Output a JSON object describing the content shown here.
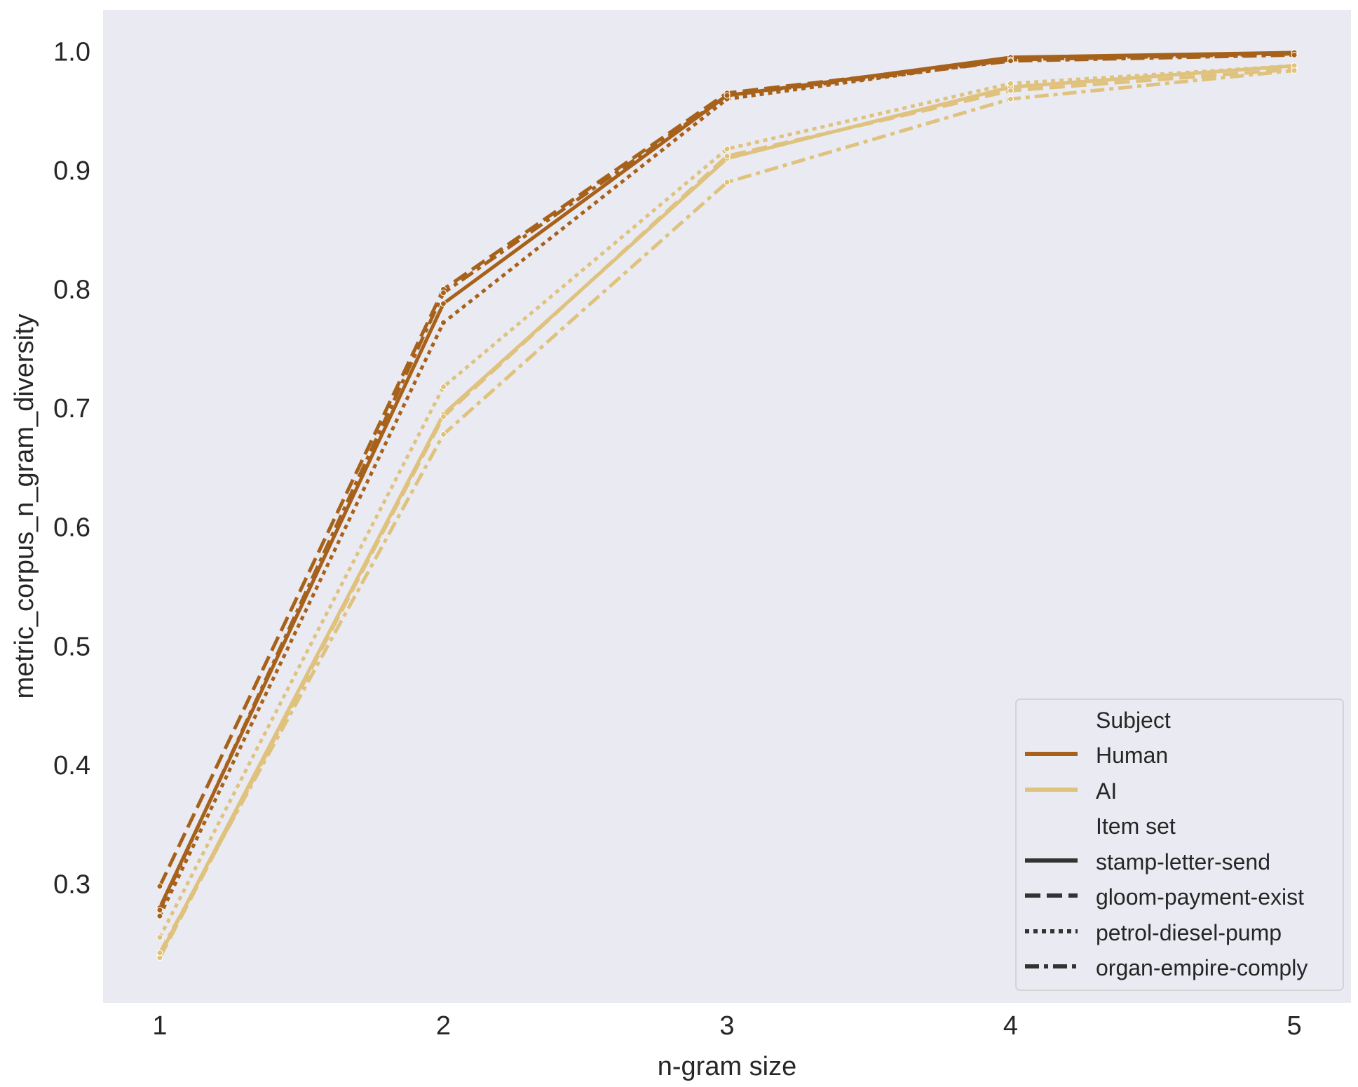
{
  "chart_data": {
    "type": "line",
    "xlabel": "n-gram size",
    "ylabel": "metric_corpus_n_gram_diversity",
    "x": [
      1,
      2,
      3,
      4,
      5
    ],
    "x_ticks": [
      "1",
      "2",
      "3",
      "4",
      "5"
    ],
    "y_ticks": [
      "0.3",
      "0.4",
      "0.5",
      "0.6",
      "0.7",
      "0.8",
      "0.9",
      "1.0"
    ],
    "xlim": [
      0.8,
      5.2
    ],
    "ylim": [
      0.2,
      1.035
    ],
    "grid": false,
    "background": "#eaeaf2",
    "legend": {
      "placement": "lower-right",
      "hue_title": "Subject",
      "hue_entries": [
        {
          "label": "Human",
          "color": "#a6611a"
        },
        {
          "label": "AI",
          "color": "#dfc27d"
        }
      ],
      "style_title": "Item set",
      "style_entries": [
        {
          "label": "stamp-letter-send",
          "dash": "solid"
        },
        {
          "label": "gloom-payment-exist",
          "dash": "dashed"
        },
        {
          "label": "petrol-diesel-pump",
          "dash": "dotted"
        },
        {
          "label": "organ-empire-comply",
          "dash": "dashdot"
        }
      ]
    },
    "series": [
      {
        "subject": "Human",
        "item_set": "stamp-letter-send",
        "color": "#a6611a",
        "dash": "solid",
        "values": [
          0.28,
          0.788,
          0.963,
          0.995,
          0.999
        ]
      },
      {
        "subject": "Human",
        "item_set": "gloom-payment-exist",
        "color": "#a6611a",
        "dash": "dashed",
        "values": [
          0.298,
          0.8,
          0.965,
          0.993,
          0.998
        ]
      },
      {
        "subject": "Human",
        "item_set": "petrol-diesel-pump",
        "color": "#a6611a",
        "dash": "dotted",
        "values": [
          0.273,
          0.772,
          0.96,
          0.993,
          0.999
        ]
      },
      {
        "subject": "Human",
        "item_set": "organ-empire-comply",
        "color": "#a6611a",
        "dash": "dashdot",
        "values": [
          0.278,
          0.797,
          0.963,
          0.992,
          0.997
        ]
      },
      {
        "subject": "AI",
        "item_set": "stamp-letter-send",
        "color": "#dfc27d",
        "dash": "solid",
        "values": [
          0.24,
          0.695,
          0.91,
          0.97,
          0.988
        ]
      },
      {
        "subject": "AI",
        "item_set": "gloom-payment-exist",
        "color": "#dfc27d",
        "dash": "dashed",
        "values": [
          0.238,
          0.693,
          0.912,
          0.967,
          0.985
        ]
      },
      {
        "subject": "AI",
        "item_set": "petrol-diesel-pump",
        "color": "#dfc27d",
        "dash": "dotted",
        "values": [
          0.255,
          0.718,
          0.918,
          0.973,
          0.988
        ]
      },
      {
        "subject": "AI",
        "item_set": "organ-empire-comply",
        "color": "#dfc27d",
        "dash": "dashdot",
        "values": [
          0.242,
          0.678,
          0.89,
          0.96,
          0.984
        ]
      }
    ]
  }
}
